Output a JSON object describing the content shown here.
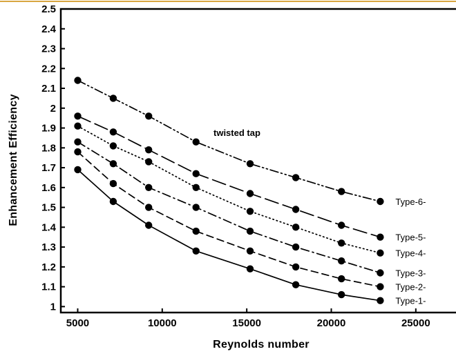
{
  "chart_data": {
    "type": "line",
    "xlabel": "Reynolds number",
    "ylabel": "Enhancement Efficiency",
    "xlim": [
      4000,
      27500
    ],
    "ylim": [
      0.97,
      2.5
    ],
    "grid": false,
    "x_ticks": [
      "5000",
      "10000",
      "15000",
      "20000",
      "25000"
    ],
    "y_ticks": [
      "1",
      "1.1",
      "1.2",
      "1.3",
      "1.4",
      "1.5",
      "1.6",
      "1.7",
      "1.8",
      "1.9",
      "2",
      "2.1",
      "2.2",
      "2.3",
      "2.4",
      "2.5"
    ],
    "annotation": "twisted tap",
    "top_rule_color": "#d8a640",
    "series": [
      {
        "name": "Type-1-",
        "dash": "solid",
        "x": [
          5000,
          7100,
          9200,
          12000,
          15200,
          17900,
          20600,
          22900
        ],
        "y": [
          1.69,
          1.53,
          1.41,
          1.28,
          1.19,
          1.11,
          1.06,
          1.03
        ]
      },
      {
        "name": "Type-2-",
        "dash": "dash",
        "x": [
          5000,
          7100,
          9200,
          12000,
          15200,
          17900,
          20600,
          22900
        ],
        "y": [
          1.78,
          1.62,
          1.5,
          1.38,
          1.28,
          1.2,
          1.14,
          1.1
        ]
      },
      {
        "name": "Type-3-",
        "dash": "dashdot",
        "x": [
          5000,
          7100,
          9200,
          12000,
          15200,
          17900,
          20600,
          22900
        ],
        "y": [
          1.83,
          1.72,
          1.6,
          1.5,
          1.38,
          1.3,
          1.23,
          1.17
        ]
      },
      {
        "name": "Type-4-",
        "dash": "dot",
        "x": [
          5000,
          7100,
          9200,
          12000,
          15200,
          17900,
          20600,
          22900
        ],
        "y": [
          1.91,
          1.81,
          1.73,
          1.6,
          1.48,
          1.4,
          1.32,
          1.27
        ]
      },
      {
        "name": "Type-5-",
        "dash": "longdash",
        "x": [
          5000,
          7100,
          9200,
          12000,
          15200,
          17900,
          20600,
          22900
        ],
        "y": [
          1.96,
          1.88,
          1.79,
          1.67,
          1.57,
          1.49,
          1.41,
          1.35
        ]
      },
      {
        "name": "Type-6-",
        "dash": "dashdotdot",
        "x": [
          5000,
          7100,
          9200,
          12000,
          15200,
          17900,
          20600,
          22900
        ],
        "y": [
          2.14,
          2.05,
          1.96,
          1.83,
          1.72,
          1.65,
          1.58,
          1.53
        ]
      }
    ]
  }
}
